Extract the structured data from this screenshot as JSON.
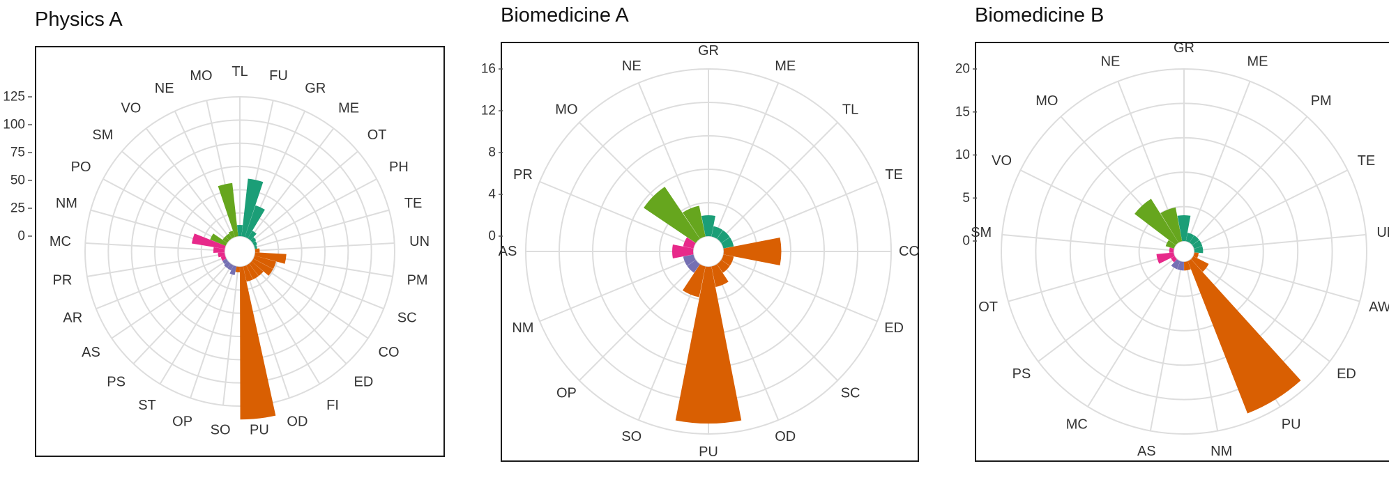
{
  "colors": {
    "orange": "#D95F02",
    "green": "#66A61E",
    "teal": "#1B9E77",
    "pink": "#E7298A",
    "purple": "#7570B3",
    "grid": "#DDDDDD",
    "axis": "#1A1A1A"
  },
  "chart_data": [
    {
      "type": "polar-bar",
      "title": "Physics A",
      "ylim": [
        0,
        125
      ],
      "yticks": [
        "0",
        "25",
        "50",
        "75",
        "100",
        "125"
      ],
      "categories": [
        "TL",
        "FU",
        "GR",
        "ME",
        "OT",
        "PH",
        "TE",
        "UN",
        "PM",
        "SC",
        "CO",
        "ED",
        "FI",
        "OD",
        "PU",
        "SO",
        "OP",
        "ST",
        "PS",
        "AS",
        "AR",
        "PR",
        "MC",
        "NM",
        "PO",
        "SM",
        "VO",
        "NE",
        "MO"
      ],
      "colors": [
        "teal",
        "teal",
        "teal",
        "teal",
        "teal",
        "teal",
        "teal",
        "orange",
        "orange",
        "orange",
        "orange",
        "orange",
        "orange",
        "orange",
        "orange",
        "orange",
        "purple",
        "purple",
        "purple",
        "purple",
        "pink",
        "pink",
        "pink",
        "pink",
        "green",
        "green",
        "green",
        "green",
        "green"
      ],
      "values": [
        10,
        52,
        30,
        8,
        4,
        3,
        2,
        4,
        28,
        20,
        20,
        14,
        14,
        14,
        137,
        5,
        8,
        5,
        5,
        4,
        4,
        6,
        10,
        30,
        15,
        5,
        5,
        6,
        48
      ]
    },
    {
      "type": "polar-bar",
      "title": "Biomedicine A",
      "ylim": [
        0,
        16
      ],
      "yticks": [
        "0",
        "4",
        "8",
        "12",
        "16"
      ],
      "categories": [
        "GR",
        "ME",
        "TL",
        "TE",
        "CO",
        "ED",
        "SC",
        "OD",
        "PU",
        "SO",
        "OP",
        "NM",
        "AS",
        "PR",
        "MO",
        "NE"
      ],
      "colors": [
        "teal",
        "teal",
        "teal",
        "teal",
        "orange",
        "orange",
        "orange",
        "orange",
        "orange",
        "orange",
        "purple",
        "purple",
        "pink",
        "pink",
        "green",
        "green"
      ],
      "values": [
        2,
        1,
        1,
        1,
        5.5,
        1,
        1,
        2,
        15,
        3,
        1,
        1,
        2,
        1,
        6,
        3
      ]
    },
    {
      "type": "polar-bar",
      "title": "Biomedicine B",
      "ylim": [
        0,
        20
      ],
      "yticks": [
        "0",
        "5",
        "10",
        "15",
        "20"
      ],
      "categories": [
        "GR",
        "ME",
        "PM",
        "TE",
        "UN",
        "AW",
        "ED",
        "PU",
        "NM",
        "AS",
        "MC",
        "PS",
        "OT",
        "SM",
        "VO",
        "MO",
        "NE"
      ],
      "colors": [
        "teal",
        "teal",
        "teal",
        "teal",
        "teal",
        "orange",
        "orange",
        "orange",
        "orange",
        "purple",
        "purple",
        "pink",
        "pink",
        "pink",
        "green",
        "green",
        "green"
      ],
      "values": [
        3,
        1,
        1,
        1,
        1,
        0.5,
        2,
        19,
        1,
        1,
        1,
        0.5,
        2,
        0.5,
        1,
        6,
        4
      ]
    }
  ]
}
